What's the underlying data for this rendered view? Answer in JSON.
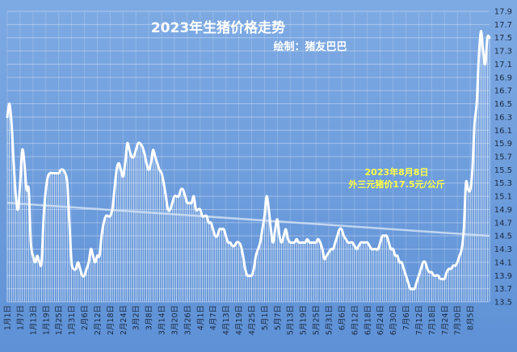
{
  "chart_data": {
    "type": "line",
    "title": "2023年生猪价格走势",
    "subtitle": "绘制：猪友巴巴",
    "annotation": {
      "line1": "2023年8月8日",
      "line2": "外三元猪价17.5元/公斤"
    },
    "ylim": [
      13.5,
      17.9
    ],
    "yticks": [
      13.5,
      13.7,
      13.9,
      14.1,
      14.3,
      14.5,
      14.7,
      14.9,
      15.1,
      15.3,
      15.5,
      15.7,
      15.9,
      16.1,
      16.3,
      16.5,
      16.7,
      16.9,
      17.1,
      17.3,
      17.5,
      17.7,
      17.9
    ],
    "xticks": [
      "1月1日",
      "1月7日",
      "1月13日",
      "1月19日",
      "1月25日",
      "1月31日",
      "2月6日",
      "2月12日",
      "2月18日",
      "2月24日",
      "3月2日",
      "3月8日",
      "3月14日",
      "3月20日",
      "3月26日",
      "4月1日",
      "4月7日",
      "4月13日",
      "4月19日",
      "4月25日",
      "5月1日",
      "5月7日",
      "5月13日",
      "5月19日",
      "5月25日",
      "5月31日",
      "6月6日",
      "6月12日",
      "6月18日",
      "6月24日",
      "6月30日",
      "7月6日",
      "7月12日",
      "7月18日",
      "7月24日",
      "7月30日",
      "8月5日"
    ],
    "trendline": {
      "start": 15.0,
      "end": 14.5
    },
    "series": [
      {
        "values": [
          16.3,
          16.5,
          16.2,
          15.6,
          15.1,
          14.9,
          15.3,
          15.8,
          15.6,
          15.2,
          15.2,
          14.4,
          14.2,
          14.1,
          14.2,
          14.1,
          14.1,
          14.8,
          15.2,
          15.4,
          15.45,
          15.45,
          15.45,
          15.45,
          15.45,
          15.5,
          15.5,
          15.45,
          15.3,
          14.7,
          14.1,
          14.0,
          14.0,
          14.1,
          14.0,
          13.9,
          13.9,
          14.0,
          14.1,
          14.3,
          14.2,
          14.1,
          14.2,
          14.2,
          14.5,
          14.7,
          14.8,
          14.8,
          14.8,
          14.9,
          15.2,
          15.5,
          15.6,
          15.5,
          15.4,
          15.6,
          15.9,
          15.8,
          15.7,
          15.7,
          15.8,
          15.9,
          15.9,
          15.85,
          15.75,
          15.6,
          15.5,
          15.6,
          15.8,
          15.7,
          15.6,
          15.5,
          15.45,
          15.3,
          15.1,
          14.9,
          14.9,
          15.0,
          15.1,
          15.1,
          15.1,
          15.2,
          15.2,
          15.1,
          15.0,
          15.0,
          15.0,
          15.1,
          14.9,
          14.9,
          14.9,
          14.8,
          14.8,
          14.8,
          14.7,
          14.7,
          14.6,
          14.5,
          14.5,
          14.6,
          14.6,
          14.6,
          14.5,
          14.4,
          14.4,
          14.35,
          14.35,
          14.4,
          14.4,
          14.35,
          14.2,
          14.0,
          13.9,
          13.9,
          13.9,
          14.0,
          14.2,
          14.3,
          14.4,
          14.6,
          14.8,
          15.1,
          14.9,
          14.6,
          14.4,
          14.6,
          14.75,
          14.5,
          14.4,
          14.5,
          14.6,
          14.45,
          14.4,
          14.4,
          14.4,
          14.45,
          14.4,
          14.4,
          14.4,
          14.4,
          14.45,
          14.4,
          14.4,
          14.4,
          14.4,
          14.45,
          14.4,
          14.3,
          14.15,
          14.2,
          14.25,
          14.3,
          14.3,
          14.4,
          14.5,
          14.6,
          14.6,
          14.5,
          14.45,
          14.4,
          14.4,
          14.4,
          14.35,
          14.3,
          14.35,
          14.4,
          14.4,
          14.4,
          14.4,
          14.35,
          14.3,
          14.3,
          14.3,
          14.3,
          14.4,
          14.5,
          14.5,
          14.5,
          14.4,
          14.3,
          14.3,
          14.2,
          14.2,
          14.1,
          14.1,
          14.0,
          13.9,
          13.8,
          13.7,
          13.7,
          13.7,
          13.8,
          13.9,
          14.0,
          14.1,
          14.1,
          14.0,
          13.95,
          13.95,
          13.9,
          13.9,
          13.9,
          13.85,
          13.85,
          13.85,
          13.95,
          14.0,
          14.0,
          14.05,
          14.05,
          14.1,
          14.2,
          14.3,
          14.6,
          15.3,
          15.2,
          15.2,
          15.5,
          16.2,
          16.5,
          17.2,
          17.6,
          17.3,
          17.1,
          17.5,
          17.5
        ]
      }
    ]
  }
}
